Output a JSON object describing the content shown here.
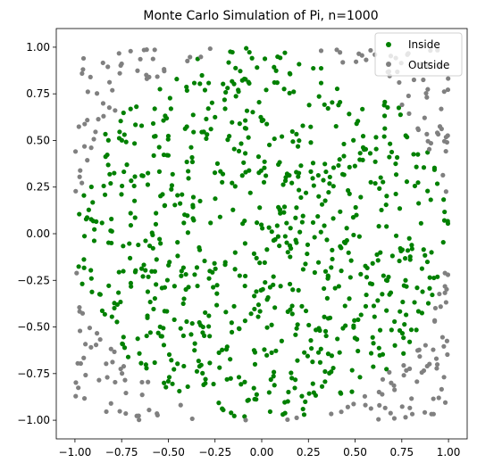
{
  "chart_data": {
    "type": "scatter",
    "title": "Monte Carlo Simulation of Pi, n=1000",
    "xlabel": "",
    "ylabel": "",
    "xlim": [
      -1.1,
      1.1
    ],
    "ylim": [
      -1.1,
      1.1
    ],
    "x_ticks": [
      "−1.00",
      "−0.75",
      "−0.50",
      "−0.25",
      "0.00",
      "0.25",
      "0.50",
      "0.75",
      "1.00"
    ],
    "y_ticks": [
      "−1.00",
      "−0.75",
      "−0.50",
      "−0.25",
      "0.00",
      "0.25",
      "0.50",
      "0.75",
      "1.00"
    ],
    "grid": false,
    "legend": {
      "placement": "top-right",
      "entries": [
        "Inside",
        "Outside"
      ]
    },
    "series": [
      {
        "name": "Inside",
        "color": "#008000",
        "count": 0,
        "points": []
      },
      {
        "name": "Outside",
        "color": "#808080",
        "count": 0,
        "points": []
      }
    ],
    "n": 1000
  }
}
